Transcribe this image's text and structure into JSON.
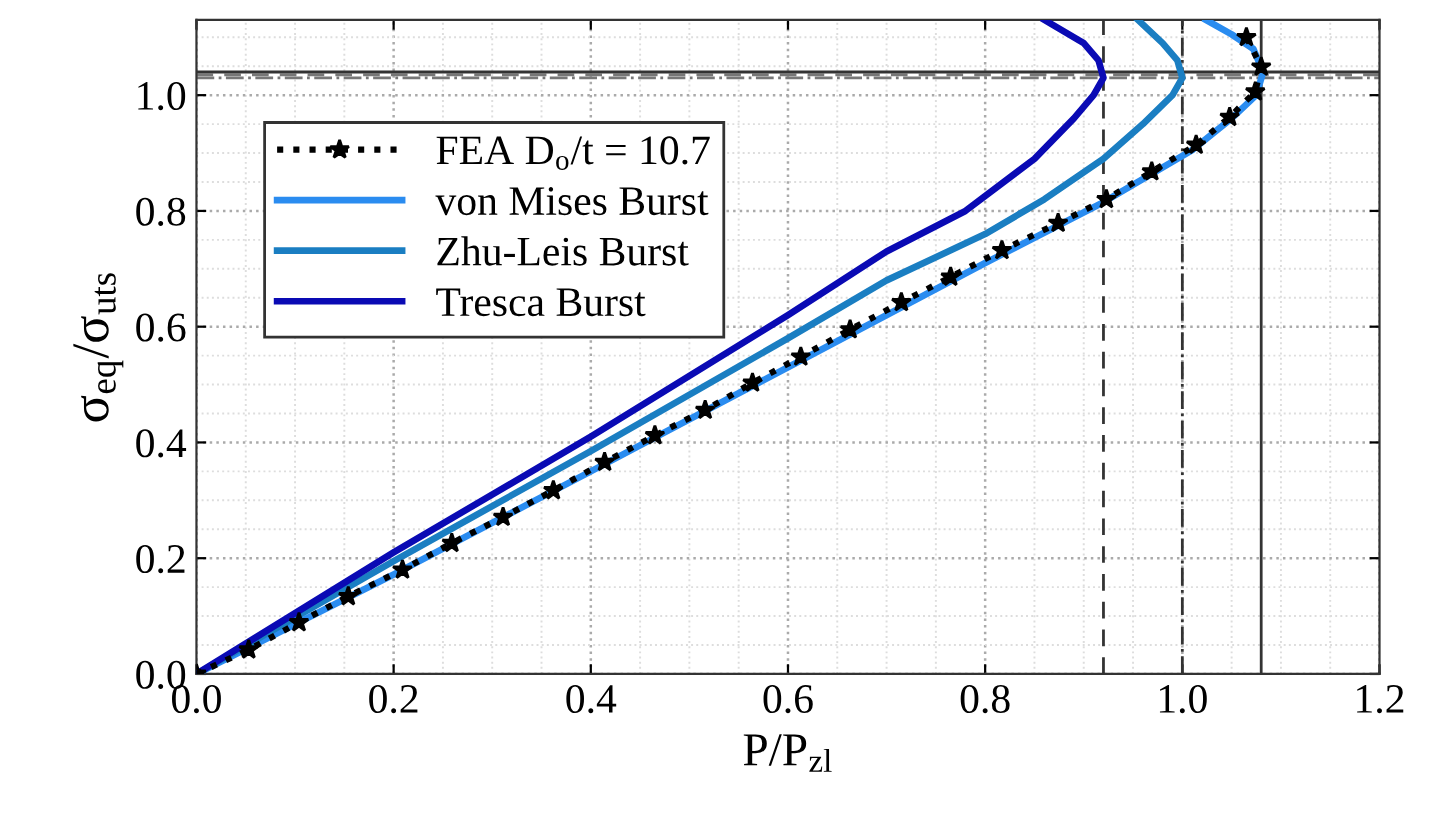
{
  "chart_data": {
    "type": "line",
    "xlabel": "P/P$_{zl}$",
    "ylabel": "σ$_{eq}$/σ$_{uts}$",
    "xlim": [
      0,
      1.2
    ],
    "ylim": [
      0,
      1.13
    ],
    "xticks": [
      {
        "value": 0,
        "label": "0.0"
      },
      {
        "value": 0.2,
        "label": "0.2"
      },
      {
        "value": 0.4,
        "label": "0.4"
      },
      {
        "value": 0.6,
        "label": "0.6"
      },
      {
        "value": 0.8,
        "label": "0.8"
      },
      {
        "value": 1.0,
        "label": "1.0"
      },
      {
        "value": 1.2,
        "label": "1.2"
      }
    ],
    "yticks": [
      {
        "value": 0,
        "label": "0.0"
      },
      {
        "value": 0.2,
        "label": "0.2"
      },
      {
        "value": 0.4,
        "label": "0.4"
      },
      {
        "value": 0.6,
        "label": "0.6"
      },
      {
        "value": 0.8,
        "label": "0.8"
      },
      {
        "value": 1.0,
        "label": "1.0"
      }
    ],
    "grid": true,
    "legend": "top left",
    "series": [
      {
        "name": "FEA D$_{o}$/t = 10.7",
        "color": "#000000",
        "marker": "star",
        "line_style": "dotted",
        "x": [
          0,
          0.053,
          0.104,
          0.154,
          0.209,
          0.259,
          0.311,
          0.362,
          0.414,
          0.465,
          0.516,
          0.564,
          0.613,
          0.663,
          0.715,
          0.765,
          0.817,
          0.874,
          0.923,
          0.969,
          1.014,
          1.048,
          1.074,
          1.08,
          1.065
        ],
        "values": [
          0,
          0.042,
          0.089,
          0.134,
          0.18,
          0.226,
          0.271,
          0.317,
          0.366,
          0.412,
          0.456,
          0.503,
          0.548,
          0.595,
          0.642,
          0.686,
          0.732,
          0.779,
          0.82,
          0.868,
          0.914,
          0.962,
          1.006,
          1.049,
          1.1
        ]
      },
      {
        "name": "von Mises Burst",
        "color": "#2a8cf0",
        "x": [
          0,
          0.2,
          0.4,
          0.6,
          0.8,
          0.92,
          1.01,
          1.05,
          1.075,
          1.082,
          1.072,
          1.05,
          1.024
        ],
        "values": [
          0,
          0.172,
          0.35,
          0.53,
          0.71,
          0.815,
          0.905,
          0.96,
          1.0,
          1.04,
          1.08,
          1.105,
          1.13
        ]
      },
      {
        "name": "Zhu-Leis Burst",
        "color": "#1a7ec2",
        "x": [
          0,
          0.2,
          0.4,
          0.6,
          0.7,
          0.8,
          0.86,
          0.92,
          0.96,
          0.99,
          1.0,
          0.995,
          0.98,
          0.955
        ],
        "values": [
          0,
          0.195,
          0.385,
          0.58,
          0.68,
          0.76,
          0.82,
          0.89,
          0.95,
          1.0,
          1.03,
          1.06,
          1.09,
          1.13
        ]
      },
      {
        "name": "Tresca Burst",
        "color": "#0a0ab4",
        "x": [
          0,
          0.2,
          0.4,
          0.6,
          0.7,
          0.78,
          0.85,
          0.89,
          0.91,
          0.92,
          0.915,
          0.9,
          0.86
        ],
        "values": [
          0,
          0.21,
          0.41,
          0.62,
          0.73,
          0.8,
          0.89,
          0.96,
          1.0,
          1.03,
          1.06,
          1.09,
          1.13
        ]
      }
    ],
    "ref_lines": [
      {
        "axis": "x",
        "value": 0.92,
        "line_style": "dashed",
        "color": "#333333"
      },
      {
        "axis": "x",
        "value": 1.0,
        "line_style": "dashdot",
        "color": "#333333"
      },
      {
        "axis": "x",
        "value": 1.08,
        "line_style": "solid",
        "color": "#333333"
      },
      {
        "axis": "y",
        "value": 1.035,
        "line_style": "dashed",
        "color": "#777777"
      },
      {
        "axis": "y",
        "value": 1.03,
        "line_style": "dashdot",
        "color": "#777777"
      },
      {
        "axis": "y",
        "value": 1.04,
        "line_style": "solid",
        "color": "#333333"
      }
    ]
  }
}
